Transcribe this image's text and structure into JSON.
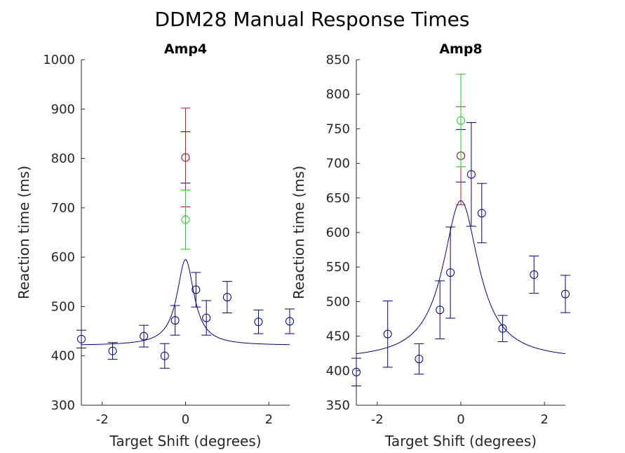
{
  "title": "DDM28 Manual Response Times",
  "colors": {
    "blue": "#00008B",
    "red": "#B22222",
    "green": "#22CC22",
    "axis": "#262626"
  },
  "chart_data": [
    {
      "type": "scatter",
      "title": "Amp4",
      "xlabel": "Target Shift (degrees)",
      "ylabel": "Reaction time (ms)",
      "xlim": [
        -2.5,
        2.5
      ],
      "ylim": [
        300,
        1000
      ],
      "xticks": [
        -2,
        0,
        2
      ],
      "yticks": [
        300,
        400,
        500,
        600,
        700,
        800,
        900,
        1000
      ],
      "xtick_labels": [
        "-2",
        "0",
        "2"
      ],
      "ytick_labels": [
        "300",
        "400",
        "500",
        "600",
        "700",
        "800",
        "900",
        "1000"
      ],
      "grid": false,
      "series": [
        {
          "color": "blue",
          "points": [
            {
              "x": -2.5,
              "y": 434,
              "err": 18
            },
            {
              "x": -1.75,
              "y": 410,
              "err": 17
            },
            {
              "x": -1.0,
              "y": 440,
              "err": 22
            },
            {
              "x": -0.5,
              "y": 400,
              "err": 25
            },
            {
              "x": -0.25,
              "y": 472,
              "err": 30
            },
            {
              "x": 0.25,
              "y": 534,
              "err": 35
            },
            {
              "x": 0.5,
              "y": 477,
              "err": 35
            },
            {
              "x": 1.0,
              "y": 519,
              "err": 32
            },
            {
              "x": 1.75,
              "y": 469,
              "err": 24
            },
            {
              "x": 2.5,
              "y": 470,
              "err": 25
            },
            {
              "x": 0.0,
              "y": 802,
              "err": 52
            }
          ]
        },
        {
          "color": "red",
          "points": [
            {
              "x": 0.0,
              "y": 802,
              "err": 100
            }
          ]
        },
        {
          "color": "green",
          "points": [
            {
              "x": 0.0,
              "y": 676,
              "err": 60
            }
          ]
        }
      ],
      "fit_curve": {
        "color": "blue",
        "base": 421,
        "amp": 174,
        "width": 0.25
      }
    },
    {
      "type": "scatter",
      "title": "Amp8",
      "xlabel": "Target Shift (degrees)",
      "ylabel": "Reaction time (ms)",
      "xlim": [
        -2.5,
        2.5
      ],
      "ylim": [
        350,
        850
      ],
      "xticks": [
        -2,
        0,
        2
      ],
      "yticks": [
        350,
        400,
        450,
        500,
        550,
        600,
        650,
        700,
        750,
        800,
        850
      ],
      "xtick_labels": [
        "-2",
        "0",
        "2"
      ],
      "ytick_labels": [
        "350",
        "400",
        "450",
        "500",
        "550",
        "600",
        "650",
        "700",
        "750",
        "800",
        "850"
      ],
      "grid": false,
      "series": [
        {
          "color": "blue",
          "points": [
            {
              "x": -2.5,
              "y": 398,
              "err": 20
            },
            {
              "x": -1.75,
              "y": 453,
              "err": 48
            },
            {
              "x": -1.0,
              "y": 417,
              "err": 22
            },
            {
              "x": -0.5,
              "y": 488,
              "err": 42
            },
            {
              "x": -0.25,
              "y": 542,
              "err": 66
            },
            {
              "x": 0.25,
              "y": 684,
              "err": 75
            },
            {
              "x": 0.5,
              "y": 628,
              "err": 43
            },
            {
              "x": 1.0,
              "y": 461,
              "err": 19
            },
            {
              "x": 1.75,
              "y": 539,
              "err": 27
            },
            {
              "x": 2.5,
              "y": 511,
              "err": 27
            },
            {
              "x": 0.0,
              "y": 711,
              "err": 38
            }
          ]
        },
        {
          "color": "red",
          "points": [
            {
              "x": 0.0,
              "y": 711,
              "err": 71
            }
          ]
        },
        {
          "color": "green",
          "points": [
            {
              "x": 0.0,
              "y": 762,
              "err": 67
            }
          ]
        }
      ],
      "fit_curve": {
        "color": "blue",
        "base": 415,
        "amp": 231,
        "width": 0.52
      }
    }
  ]
}
